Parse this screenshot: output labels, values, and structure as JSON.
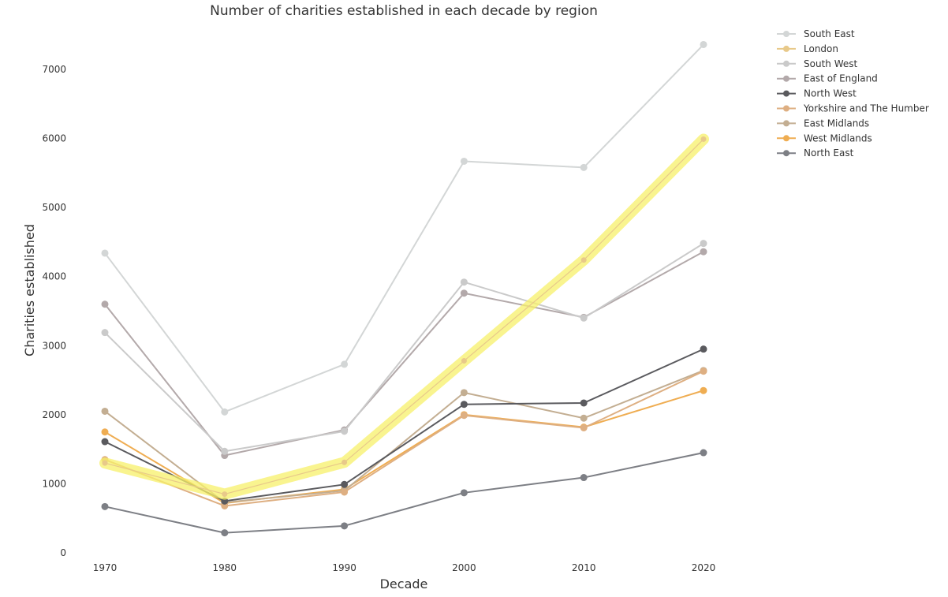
{
  "chart_data": {
    "type": "line",
    "title": "Number of charities established in each decade by region",
    "xlabel": "Decade",
    "ylabel": "Charities established",
    "x": [
      1970,
      1980,
      1990,
      2000,
      2010,
      2020
    ],
    "x_tick_labels": [
      "1970",
      "1980",
      "1990",
      "2000",
      "2010",
      "2020"
    ],
    "ylim": [
      0,
      7400
    ],
    "y_ticks": [
      0,
      1000,
      2000,
      3000,
      4000,
      5000,
      6000,
      7000
    ],
    "y_tick_labels": [
      "0",
      "1000",
      "2000",
      "3000",
      "4000",
      "5000",
      "6000",
      "7000"
    ],
    "grid": false,
    "legend_position": "top-right-outside",
    "highlight_series": "London",
    "highlight_color": "#f7f06a",
    "series": [
      {
        "name": "South East",
        "color": "#d3d6d6",
        "values": [
          4340,
          2040,
          2730,
          5670,
          5580,
          7360
        ]
      },
      {
        "name": "London",
        "color": "#e8c98a",
        "values": [
          1300,
          850,
          1310,
          2780,
          4240,
          5990
        ]
      },
      {
        "name": "South West",
        "color": "#cacaca",
        "values": [
          3190,
          1470,
          1760,
          3920,
          3400,
          4480
        ]
      },
      {
        "name": "East of England",
        "color": "#b3a9aa",
        "values": [
          3600,
          1410,
          1780,
          3760,
          3410,
          4360
        ]
      },
      {
        "name": "North West",
        "color": "#5a5a5e",
        "values": [
          1610,
          750,
          990,
          2150,
          2170,
          2950
        ]
      },
      {
        "name": "Yorkshire and The Humber",
        "color": "#deaf82",
        "values": [
          1350,
          680,
          880,
          1990,
          1810,
          2630
        ]
      },
      {
        "name": "East Midlands",
        "color": "#c3ae92",
        "values": [
          2050,
          730,
          900,
          2320,
          1950,
          2640
        ]
      },
      {
        "name": "West Midlands",
        "color": "#efad52",
        "values": [
          1750,
          720,
          920,
          2000,
          1820,
          2350
        ]
      },
      {
        "name": "North East",
        "color": "#7d7f85",
        "values": [
          670,
          290,
          390,
          870,
          1090,
          1450
        ]
      }
    ]
  }
}
